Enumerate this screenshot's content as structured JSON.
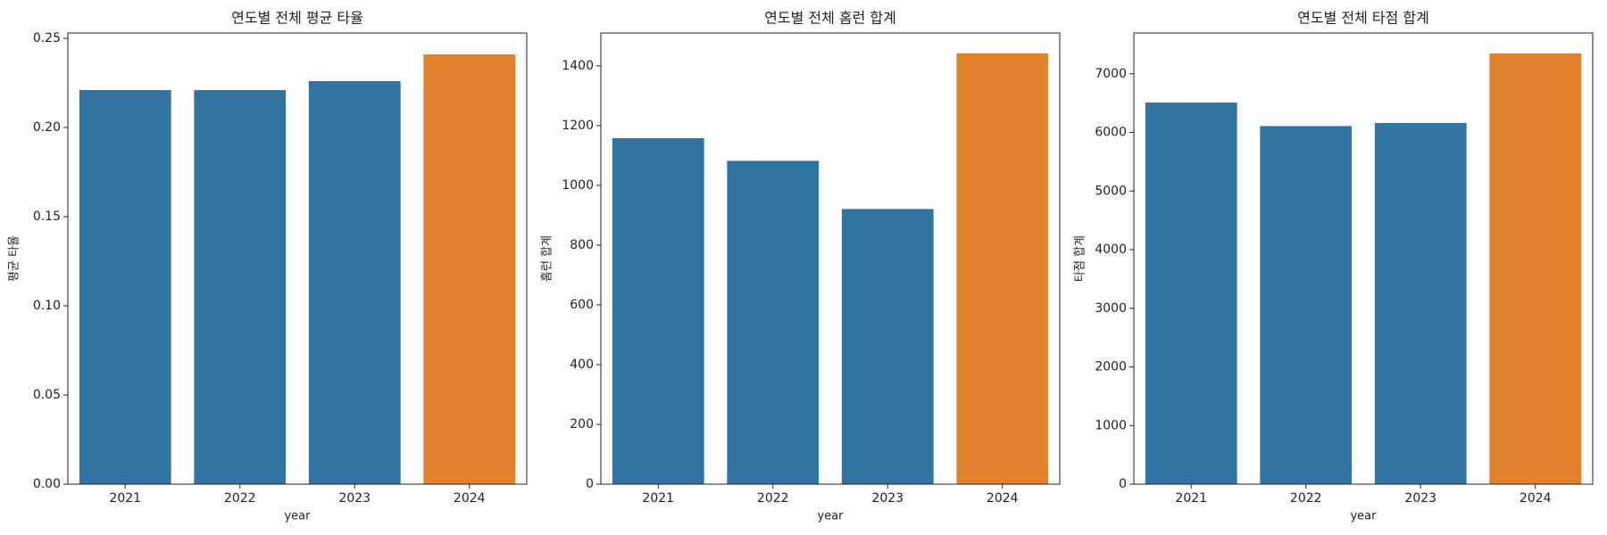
{
  "chart_data": [
    {
      "type": "bar",
      "title": "연도별 전체 평균 타율",
      "xlabel": "year",
      "ylabel": "평균 타율",
      "categories": [
        "2021",
        "2022",
        "2023",
        "2024"
      ],
      "values": [
        0.221,
        0.221,
        0.226,
        0.241
      ],
      "colors": [
        "#3274a1",
        "#3274a1",
        "#3274a1",
        "#e1812c"
      ],
      "ylim": [
        0,
        0.253
      ],
      "yticks": [
        {
          "value": 0,
          "label": "0.00"
        },
        {
          "value": 0.05,
          "label": "0.05"
        },
        {
          "value": 0.1,
          "label": "0.10"
        },
        {
          "value": 0.15,
          "label": "0.15"
        },
        {
          "value": 0.2,
          "label": "0.20"
        },
        {
          "value": 0.25,
          "label": "0.25"
        }
      ]
    },
    {
      "type": "bar",
      "title": "연도별 전체 홈런 합계",
      "xlabel": "year",
      "ylabel": "홈런 합계",
      "categories": [
        "2021",
        "2022",
        "2023",
        "2024"
      ],
      "values": [
        1158,
        1082,
        921,
        1442
      ],
      "colors": [
        "#3274a1",
        "#3274a1",
        "#3274a1",
        "#e1812c"
      ],
      "ylim": [
        0,
        1510
      ],
      "yticks": [
        0,
        200,
        400,
        600,
        800,
        1000,
        1200,
        1400
      ]
    },
    {
      "type": "bar",
      "title": "연도별 전체 타점 합계",
      "xlabel": "year",
      "ylabel": "타점 합계",
      "categories": [
        "2021",
        "2022",
        "2023",
        "2024"
      ],
      "values": [
        6510,
        6108,
        6161,
        7347
      ],
      "colors": [
        "#3274a1",
        "#3274a1",
        "#3274a1",
        "#e1812c"
      ],
      "ylim": [
        0,
        7696
      ],
      "yticks": [
        0,
        1000,
        2000,
        3000,
        4000,
        5000,
        6000,
        7000
      ]
    }
  ]
}
